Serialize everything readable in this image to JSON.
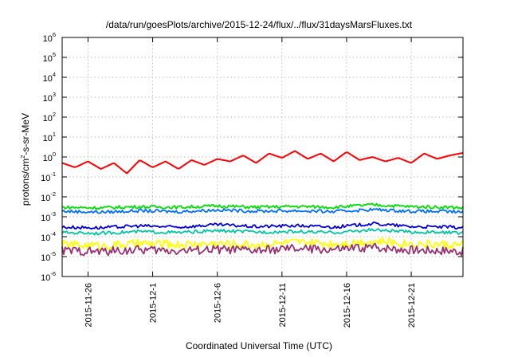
{
  "chart_data": {
    "type": "line",
    "title": "/data/run/goesPlots/archive/2015-12-24/flux/../flux/31daysMarsFluxes.txt",
    "xlabel": "Coordinated Universal Time (UTC)",
    "ylabel": {
      "prefix": "protons/cm",
      "sup": "2",
      "suffix": "-s-sr-MeV"
    },
    "y_scale": "log",
    "ylim": [
      1e-06,
      1000000.0
    ],
    "y_ticks": [
      {
        "base": "10",
        "exp": "6",
        "value": 1000000.0
      },
      {
        "base": "10",
        "exp": "5",
        "value": 100000.0
      },
      {
        "base": "10",
        "exp": "4",
        "value": 10000.0
      },
      {
        "base": "10",
        "exp": "3",
        "value": 1000.0
      },
      {
        "base": "10",
        "exp": "2",
        "value": 100.0
      },
      {
        "base": "10",
        "exp": "1",
        "value": 10.0
      },
      {
        "base": "10",
        "exp": "0",
        "value": 1.0
      },
      {
        "base": "10",
        "exp": "-1",
        "value": 0.1
      },
      {
        "base": "10",
        "exp": "-2",
        "value": 0.01
      },
      {
        "base": "10",
        "exp": "-3",
        "value": 0.001
      },
      {
        "base": "10",
        "exp": "-4",
        "value": 0.0001
      },
      {
        "base": "10",
        "exp": "-5",
        "value": 1e-05
      },
      {
        "base": "10",
        "exp": "-6",
        "value": 1e-06
      }
    ],
    "xlim": [
      "2015-11-24",
      "2015-12-25"
    ],
    "x_ticks": [
      "2015-11-26",
      "2015-12-1",
      "2015-12-6",
      "2015-12-11",
      "2015-12-16",
      "2015-12-21"
    ],
    "x_tick_dates": [
      "2015-11-26",
      "2015-12-01",
      "2015-12-06",
      "2015-12-11",
      "2015-12-16",
      "2015-12-21"
    ],
    "grid": true,
    "series": [
      {
        "color": "#ff0000",
        "x": [
          "2015-11-24",
          "2015-11-25",
          "2015-11-26",
          "2015-11-27",
          "2015-11-28",
          "2015-11-29",
          "2015-11-30",
          "2015-12-01",
          "2015-12-02",
          "2015-12-03",
          "2015-12-04",
          "2015-12-05",
          "2015-12-06",
          "2015-12-07",
          "2015-12-08",
          "2015-12-09",
          "2015-12-10",
          "2015-12-11",
          "2015-12-12",
          "2015-12-13",
          "2015-12-14",
          "2015-12-15",
          "2015-12-16",
          "2015-12-17",
          "2015-12-18",
          "2015-12-19",
          "2015-12-20",
          "2015-12-21",
          "2015-12-22",
          "2015-12-23",
          "2015-12-24",
          "2015-12-25"
        ],
        "values": [
          0.5,
          0.3,
          0.6,
          0.25,
          0.5,
          0.15,
          0.7,
          0.3,
          0.6,
          0.25,
          0.7,
          0.4,
          0.8,
          0.6,
          1.2,
          0.5,
          1.5,
          0.9,
          2.0,
          0.8,
          1.5,
          0.6,
          1.8,
          0.7,
          1.0,
          0.6,
          0.9,
          0.5,
          1.5,
          0.8,
          1.2,
          1.6
        ]
      },
      {
        "color": "#00e000",
        "x": [
          "2015-11-24",
          "2015-11-27",
          "2015-11-30",
          "2015-12-03",
          "2015-12-06",
          "2015-12-09",
          "2015-12-12",
          "2015-12-15",
          "2015-12-18",
          "2015-12-21",
          "2015-12-24",
          "2015-12-25"
        ],
        "values": [
          0.003,
          0.0028,
          0.0032,
          0.003,
          0.0035,
          0.003,
          0.0033,
          0.003,
          0.004,
          0.0032,
          0.003,
          0.0028
        ]
      },
      {
        "color": "#0070ff",
        "x": [
          "2015-11-24",
          "2015-11-27",
          "2015-11-30",
          "2015-12-03",
          "2015-12-06",
          "2015-12-09",
          "2015-12-12",
          "2015-12-15",
          "2015-12-18",
          "2015-12-21",
          "2015-12-24",
          "2015-12-25"
        ],
        "values": [
          0.0019,
          0.0017,
          0.002,
          0.0018,
          0.0022,
          0.0019,
          0.002,
          0.0018,
          0.0023,
          0.0019,
          0.0018,
          0.0017
        ]
      },
      {
        "color": "#0000dd",
        "x": [
          "2015-11-24",
          "2015-11-27",
          "2015-11-30",
          "2015-12-03",
          "2015-12-06",
          "2015-12-09",
          "2015-12-12",
          "2015-12-15",
          "2015-12-18",
          "2015-12-21",
          "2015-12-24",
          "2015-12-25"
        ],
        "values": [
          0.0003,
          0.00028,
          0.00035,
          0.0003,
          0.0004,
          0.00032,
          0.00036,
          0.0003,
          0.00045,
          0.00032,
          0.0003,
          0.00028
        ]
      },
      {
        "color": "#00c8a0",
        "x": [
          "2015-11-24",
          "2015-11-27",
          "2015-11-30",
          "2015-12-03",
          "2015-12-06",
          "2015-12-09",
          "2015-12-12",
          "2015-12-15",
          "2015-12-18",
          "2015-12-21",
          "2015-12-24",
          "2015-12-25"
        ],
        "values": [
          0.00016,
          0.00015,
          0.00018,
          0.00016,
          0.0002,
          0.00017,
          0.00018,
          0.00016,
          0.00022,
          0.00017,
          0.00016,
          0.00015
        ]
      },
      {
        "color": "#ffff00",
        "x": [
          "2015-11-24",
          "2015-11-27",
          "2015-11-30",
          "2015-12-03",
          "2015-12-06",
          "2015-12-09",
          "2015-12-12",
          "2015-12-15",
          "2015-12-18",
          "2015-12-21",
          "2015-12-24",
          "2015-12-25"
        ],
        "values": [
          4e-05,
          3.5e-05,
          4.5e-05,
          4e-05,
          4.5e-05,
          4e-05,
          5e-05,
          4.5e-05,
          6e-05,
          4.5e-05,
          4e-05,
          3.8e-05
        ]
      },
      {
        "color": "#9b3070",
        "x": [
          "2015-11-24",
          "2015-11-27",
          "2015-11-30",
          "2015-12-03",
          "2015-12-06",
          "2015-12-09",
          "2015-12-12",
          "2015-12-15",
          "2015-12-18",
          "2015-12-21",
          "2015-12-24",
          "2015-12-25"
        ],
        "values": [
          2e-05,
          1.8e-05,
          2.2e-05,
          2e-05,
          2.3e-05,
          2e-05,
          2.5e-05,
          2.2e-05,
          3e-05,
          2.2e-05,
          2e-05,
          1.8e-05
        ]
      }
    ]
  }
}
